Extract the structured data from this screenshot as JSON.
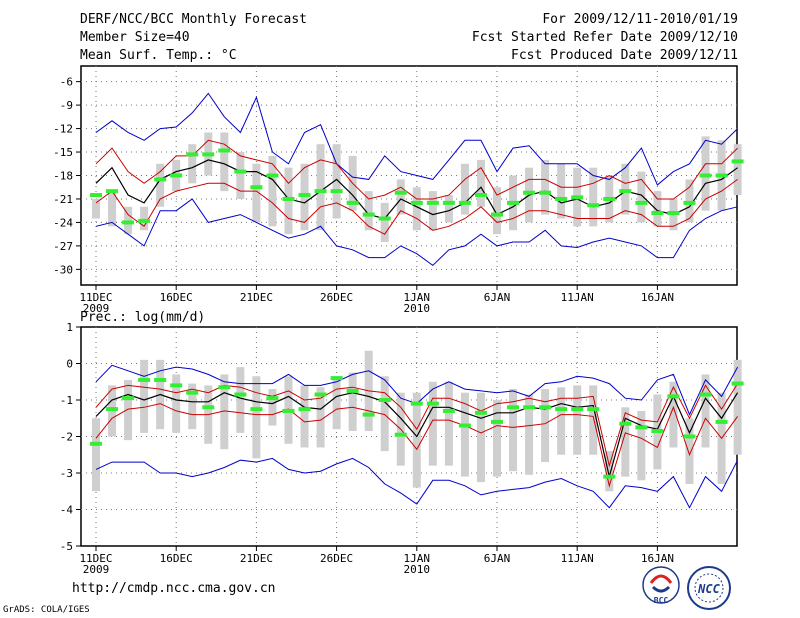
{
  "header": {
    "title": "DERF/NCC/BCC Monthly Forecast",
    "member": "Member Size=40",
    "variable": "Mean Surf. Temp.: °C",
    "period": "For 2009/12/11-2010/01/19",
    "started": "Fcst Started Refer Date 2009/12/10",
    "produced": "Fcst Produced Date 2009/12/11"
  },
  "precip_label": "Prec.: log(mm/d)",
  "footer": {
    "url": "http://cmdp.ncc.cma.gov.cn",
    "grads": "GrADS: COLA/IGES"
  },
  "logos": {
    "bcc": "BCC",
    "ncc": "NCC"
  },
  "colors": {
    "ensemble_outer": "#0000cc",
    "ensemble_inner": "#cc0000",
    "mean": "#000000",
    "observed": "#33ee33",
    "box": "#cfcfcf"
  },
  "chart_data": [
    {
      "type": "line",
      "title": "Mean Surf. Temp.",
      "ylim": [
        -32,
        -4
      ],
      "yticks": [
        -6,
        -9,
        -12,
        -15,
        -18,
        -21,
        -24,
        -27,
        -30
      ],
      "xtick_days": [
        1,
        6,
        11,
        16,
        21,
        26,
        31,
        36
      ],
      "xtick_labels": [
        "11DEC",
        "16DEC",
        "21DEC",
        "26DEC",
        "1JAN",
        "6JAN",
        "11JAN",
        "16JAN"
      ],
      "xtick_years": [
        "2009",
        "",
        "",
        "",
        "2010",
        "",
        "",
        ""
      ],
      "series": [
        {
          "name": "max",
          "values": [
            -12.5,
            -11,
            -12.5,
            -13.5,
            -12,
            -11.8,
            -10,
            -7.5,
            -10.5,
            -12.5,
            -8,
            -15,
            -16.5,
            -12.5,
            -11.5,
            -16.5,
            -18.2,
            -18.5,
            -15.5,
            -17.5,
            -18,
            -18.5,
            -16,
            -13.5,
            -13.5,
            -17.5,
            -14.5,
            -14.2,
            -16.5,
            -16.5,
            -16.5,
            -18,
            -18.5,
            -17,
            -14.5,
            -19.2,
            -17.5,
            -16.5,
            -13.5,
            -14,
            -12
          ]
        },
        {
          "name": "q75",
          "values": [
            -16.5,
            -14.5,
            -17.5,
            -19,
            -17.5,
            -15.5,
            -15.5,
            -13.5,
            -14,
            -15.5,
            -16,
            -16.5,
            -19,
            -17,
            -16,
            -16.5,
            -19,
            -21,
            -20.5,
            -19.5,
            -21,
            -21,
            -20.5,
            -18.5,
            -17,
            -20.5,
            -19.5,
            -18.5,
            -18.5,
            -19.5,
            -19.5,
            -19,
            -18,
            -19,
            -18.5,
            -21,
            -21,
            -19.5,
            -16.5,
            -16.5,
            -14.5
          ]
        },
        {
          "name": "mean",
          "values": [
            -19,
            -17,
            -20.5,
            -21.5,
            -18.5,
            -17.5,
            -17,
            -16,
            -16.5,
            -17.5,
            -17.5,
            -18.5,
            -21,
            -21.5,
            -20,
            -18.5,
            -20.5,
            -23,
            -23.5,
            -21,
            -22,
            -23,
            -22.5,
            -21.5,
            -19.5,
            -23,
            -22,
            -20.5,
            -20,
            -21.5,
            -21,
            -22,
            -21.5,
            -20,
            -20.5,
            -22.5,
            -23,
            -22,
            -19,
            -18.5,
            -17
          ]
        },
        {
          "name": "q25",
          "values": [
            -21.5,
            -20,
            -23,
            -24.5,
            -21,
            -20,
            -19.5,
            -19,
            -19,
            -20,
            -20,
            -21.5,
            -23.5,
            -24,
            -22,
            -21.5,
            -22.5,
            -24.5,
            -25.5,
            -22.5,
            -23.5,
            -25,
            -24.5,
            -23.5,
            -22,
            -24,
            -23.5,
            -22.5,
            -22.5,
            -23,
            -23.5,
            -23.5,
            -23.5,
            -22.5,
            -23,
            -24.5,
            -24.5,
            -23.5,
            -21,
            -20,
            -18.5
          ]
        },
        {
          "name": "min",
          "values": [
            -24.5,
            -24,
            -25.5,
            -27,
            -22.5,
            -22.5,
            -21,
            -24,
            -23.5,
            -23,
            -24,
            -25,
            -26,
            -25.5,
            -24.5,
            -27,
            -27.5,
            -28.5,
            -28.5,
            -27,
            -28,
            -29.5,
            -27.5,
            -27,
            -25.5,
            -27,
            -26.5,
            -26.5,
            -25,
            -27,
            -27.2,
            -26.5,
            -26,
            -26.5,
            -27,
            -28.5,
            -28.5,
            -25,
            -23.5,
            -22.5,
            -22
          ]
        },
        {
          "name": "box_top",
          "values": [
            -21,
            -20,
            -22,
            -22,
            -16.5,
            -16,
            -14,
            -12.5,
            -12.5,
            -15,
            -16.5,
            -15.5,
            -17,
            -16.5,
            -14,
            -14,
            -15.5,
            -20,
            -21.5,
            -18.5,
            -19.5,
            -20,
            -20.5,
            -16.5,
            -16,
            -19.5,
            -18,
            -17,
            -16,
            -16.5,
            -17,
            -17,
            -18,
            -16.5,
            -17.5,
            -20,
            -21,
            -18.5,
            -13,
            -13.5,
            -14
          ]
        },
        {
          "name": "box_bottom",
          "values": [
            -23.5,
            -24.5,
            -25.5,
            -25,
            -22,
            -20,
            -19,
            -18,
            -20,
            -21,
            -24,
            -24.5,
            -25.5,
            -25,
            -25,
            -23.5,
            -22.5,
            -25,
            -26.5,
            -23,
            -25,
            -25,
            -24,
            -23,
            -22,
            -25.5,
            -25,
            -24,
            -23,
            -23.5,
            -24.5,
            -24.5,
            -24,
            -23,
            -24,
            -24.5,
            -25,
            -24,
            -22.5,
            -22.5,
            -20.5
          ]
        },
        {
          "name": "observed",
          "values": [
            -20.5,
            -20,
            -24,
            -23.8,
            -18.5,
            -18,
            -15.3,
            -15.3,
            -14.8,
            -17.5,
            -19.5,
            -18,
            -21,
            -20.5,
            -20,
            -20,
            -21.5,
            -23,
            -23.5,
            -20.2,
            -21.5,
            -21.5,
            -21.5,
            -21.5,
            -20.5,
            -23,
            -21.5,
            -20.2,
            -20.2,
            -21,
            -20.8,
            -21.8,
            -21,
            -20,
            -21.5,
            -22.8,
            -22.8,
            -21.5,
            -18,
            -18,
            -16.2
          ]
        }
      ]
    },
    {
      "type": "line",
      "title": "Prec.: log(mm/d)",
      "ylim": [
        -5,
        1
      ],
      "yticks": [
        1,
        0,
        -1,
        -2,
        -3,
        -4,
        -5
      ],
      "xtick_days": [
        1,
        6,
        11,
        16,
        21,
        26,
        31,
        36
      ],
      "xtick_labels": [
        "11DEC",
        "16DEC",
        "21DEC",
        "26DEC",
        "1JAN",
        "6JAN",
        "11JAN",
        "16JAN"
      ],
      "xtick_years": [
        "2009",
        "",
        "",
        "",
        "2010",
        "",
        "",
        ""
      ],
      "series": [
        {
          "name": "max",
          "values": [
            -0.5,
            -0.05,
            -0.2,
            -0.35,
            -0.2,
            -0.1,
            -0.15,
            -0.3,
            -0.5,
            -0.55,
            -0.55,
            -0.55,
            -0.3,
            -0.6,
            -0.6,
            -0.5,
            -0.3,
            -0.2,
            -0.45,
            -0.95,
            -1.1,
            -0.7,
            -0.5,
            -0.7,
            -0.75,
            -0.8,
            -0.75,
            -0.9,
            -0.55,
            -0.5,
            -0.35,
            -0.4,
            -0.55,
            -0.95,
            -1.0,
            -0.45,
            -0.3,
            -1.4,
            -0.45,
            -0.9,
            -0.1
          ]
        },
        {
          "name": "q75",
          "values": [
            -1.2,
            -0.7,
            -0.6,
            -0.65,
            -0.7,
            -0.8,
            -0.7,
            -0.8,
            -0.6,
            -0.65,
            -0.8,
            -0.9,
            -0.75,
            -1.0,
            -0.95,
            -0.7,
            -0.65,
            -0.75,
            -0.8,
            -1.2,
            -1.8,
            -0.95,
            -0.95,
            -1.1,
            -1.3,
            -1.1,
            -1.05,
            -0.95,
            -1.05,
            -0.95,
            -0.95,
            -0.9,
            -2.8,
            -1.35,
            -1.55,
            -1.6,
            -0.65,
            -1.5,
            -0.6,
            -1.25,
            -0.55
          ]
        },
        {
          "name": "mean",
          "values": [
            -1.45,
            -1.0,
            -0.85,
            -1.0,
            -0.85,
            -1.0,
            -1.05,
            -1.05,
            -0.8,
            -0.95,
            -1.05,
            -1.1,
            -0.9,
            -1.2,
            -1.25,
            -0.9,
            -0.8,
            -0.9,
            -1.05,
            -1.5,
            -2.0,
            -1.2,
            -1.2,
            -1.35,
            -1.5,
            -1.35,
            -1.35,
            -1.2,
            -1.25,
            -1.1,
            -1.2,
            -1.15,
            -3.1,
            -1.5,
            -1.7,
            -1.8,
            -0.9,
            -1.9,
            -0.95,
            -1.5,
            -0.8
          ]
        },
        {
          "name": "q25",
          "values": [
            -2.05,
            -1.5,
            -1.25,
            -1.2,
            -1.1,
            -1.3,
            -1.4,
            -1.4,
            -1.3,
            -1.35,
            -1.4,
            -1.4,
            -1.25,
            -1.6,
            -1.55,
            -1.25,
            -1.2,
            -1.3,
            -1.4,
            -1.8,
            -2.35,
            -1.55,
            -1.55,
            -1.7,
            -1.9,
            -1.7,
            -1.75,
            -1.7,
            -1.65,
            -1.4,
            -1.4,
            -1.45,
            -3.35,
            -1.9,
            -2.05,
            -2.3,
            -1.2,
            -2.5,
            -1.5,
            -2.05,
            -1.45
          ]
        },
        {
          "name": "min",
          "values": [
            -2.9,
            -2.7,
            -2.7,
            -2.7,
            -3.0,
            -3.0,
            -3.1,
            -3.0,
            -2.85,
            -2.65,
            -2.7,
            -2.6,
            -2.9,
            -3.0,
            -2.95,
            -2.75,
            -2.6,
            -2.85,
            -3.3,
            -3.55,
            -3.85,
            -3.2,
            -3.2,
            -3.35,
            -3.6,
            -3.5,
            -3.45,
            -3.4,
            -3.25,
            -3.15,
            -3.35,
            -3.5,
            -3.95,
            -3.35,
            -3.4,
            -3.5,
            -3.1,
            -3.95,
            -3.1,
            -3.5,
            -2.65
          ]
        },
        {
          "name": "box_top",
          "values": [
            -1.5,
            -0.6,
            -0.45,
            0.1,
            0.1,
            -0.3,
            -0.55,
            -0.6,
            -0.3,
            -0.1,
            -0.35,
            -0.7,
            -0.35,
            -0.6,
            -0.65,
            -0.45,
            -0.25,
            0.35,
            -0.35,
            -0.8,
            -0.8,
            -0.5,
            -0.5,
            -0.8,
            -0.8,
            -1.0,
            -0.7,
            -0.85,
            -0.7,
            -0.65,
            -0.6,
            -0.6,
            -2.4,
            -1.2,
            -1.3,
            -0.85,
            -0.5,
            -1.5,
            -0.3,
            -0.8,
            0.1
          ]
        },
        {
          "name": "box_bottom",
          "values": [
            -3.5,
            -2.0,
            -2.1,
            -1.9,
            -1.8,
            -1.9,
            -1.8,
            -2.2,
            -2.35,
            -1.9,
            -2.6,
            -1.7,
            -2.2,
            -2.3,
            -2.3,
            -1.8,
            -1.85,
            -1.85,
            -2.4,
            -2.8,
            -3.4,
            -2.8,
            -2.8,
            -3.1,
            -3.25,
            -3.1,
            -2.95,
            -3.05,
            -2.7,
            -2.5,
            -2.5,
            -2.5,
            -3.5,
            -3.1,
            -3.2,
            -2.9,
            -2.3,
            -3.3,
            -2.3,
            -3.3,
            -2.5
          ]
        },
        {
          "name": "observed",
          "values": [
            -2.2,
            -1.25,
            -0.95,
            -0.45,
            -0.45,
            -0.6,
            -0.8,
            -1.2,
            -0.65,
            -0.85,
            -1.25,
            -0.95,
            -1.3,
            -1.25,
            -0.85,
            -0.4,
            -0.75,
            -1.4,
            -1.0,
            -1.95,
            -1.1,
            -1.1,
            -1.3,
            -1.7,
            -1.35,
            -1.6,
            -1.2,
            -1.2,
            -1.2,
            -1.25,
            -1.25,
            -1.25,
            -3.1,
            -1.65,
            -1.75,
            -1.85,
            -0.9,
            -2.0,
            -0.85,
            -1.6,
            -0.55
          ]
        }
      ]
    }
  ]
}
